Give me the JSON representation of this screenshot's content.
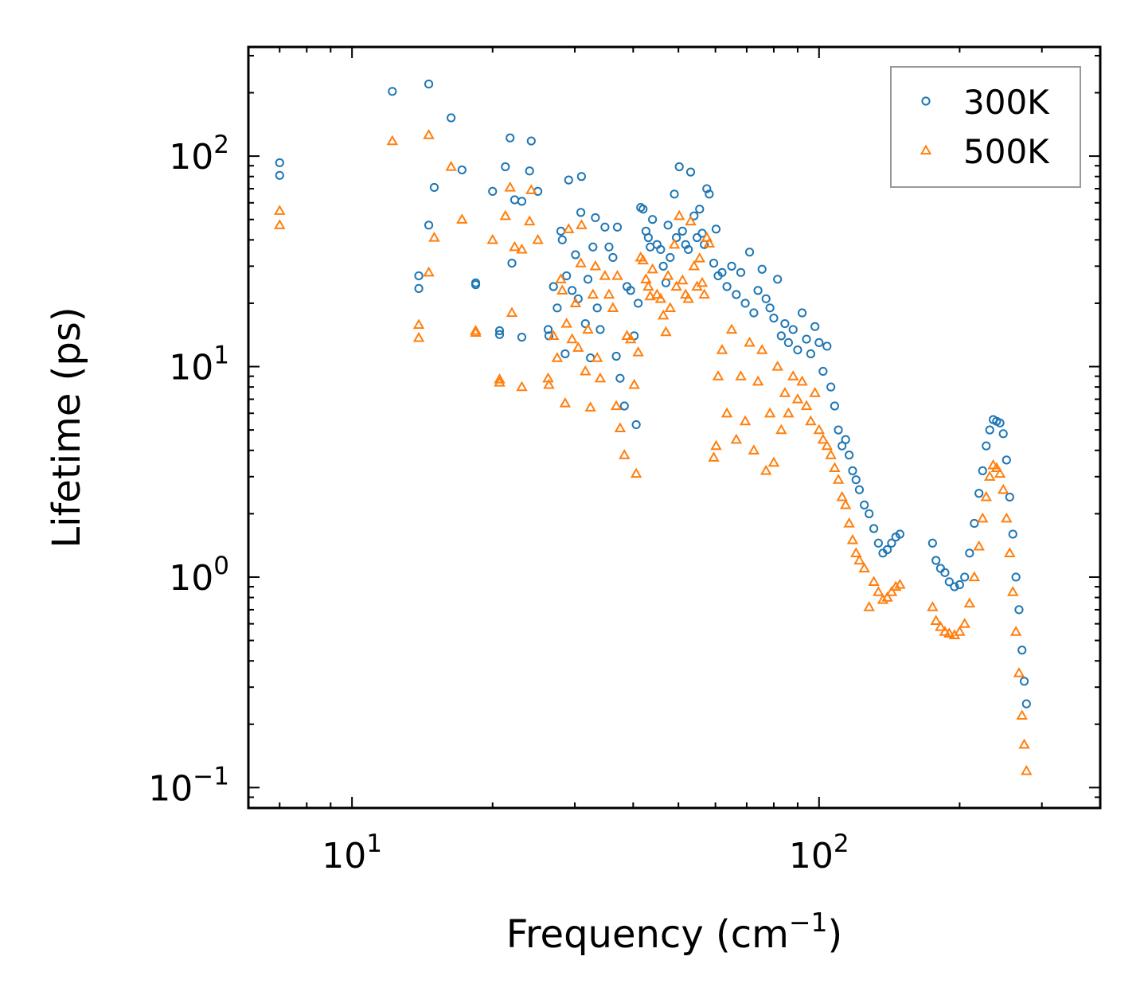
{
  "chart_data": {
    "type": "scatter",
    "title": "",
    "xlabel": "Frequency (cm",
    "xlabel_sup": "−1",
    "xlabel_end": ")",
    "ylabel": "Lifetime (ps)",
    "xscale": "log",
    "yscale": "log",
    "xlim": [
      6.0,
      400.0
    ],
    "ylim": [
      0.08,
      330.0
    ],
    "xticks": [
      {
        "value": 10,
        "base": "10",
        "exp": "1"
      },
      {
        "value": 100,
        "base": "10",
        "exp": "2"
      }
    ],
    "yticks": [
      {
        "value": 0.1,
        "base": "10",
        "exp": "−1"
      },
      {
        "value": 1,
        "base": "10",
        "exp": "0"
      },
      {
        "value": 10,
        "base": "10",
        "exp": "1"
      },
      {
        "value": 100,
        "base": "10",
        "exp": "2"
      }
    ],
    "legend_position": "top-right",
    "series": [
      {
        "name": "300K",
        "marker": "circle",
        "color": "#1f77b4",
        "points": [
          [
            7.0,
            93
          ],
          [
            7.0,
            81
          ],
          [
            12.2,
            203
          ],
          [
            14.6,
            220
          ],
          [
            16.3,
            152
          ],
          [
            13.9,
            27
          ],
          [
            13.9,
            23.5
          ],
          [
            14.6,
            47
          ],
          [
            15.0,
            71
          ],
          [
            17.2,
            86
          ],
          [
            18.4,
            25
          ],
          [
            18.4,
            24.5
          ],
          [
            20.0,
            68
          ],
          [
            20.7,
            14.8
          ],
          [
            20.7,
            14.2
          ],
          [
            21.3,
            89
          ],
          [
            21.8,
            122
          ],
          [
            22.0,
            31
          ],
          [
            22.3,
            62
          ],
          [
            23.1,
            61
          ],
          [
            23.1,
            13.8
          ],
          [
            24.0,
            85
          ],
          [
            24.2,
            118
          ],
          [
            25.0,
            68
          ],
          [
            26.3,
            15
          ],
          [
            26.4,
            14
          ],
          [
            27.0,
            24
          ],
          [
            27.5,
            19
          ],
          [
            28.0,
            44
          ],
          [
            28.2,
            40
          ],
          [
            28.6,
            11.5
          ],
          [
            28.8,
            27
          ],
          [
            29.1,
            77
          ],
          [
            29.6,
            23
          ],
          [
            30.1,
            34
          ],
          [
            30.5,
            21
          ],
          [
            30.9,
            54
          ],
          [
            31.0,
            80
          ],
          [
            31.6,
            16
          ],
          [
            32.0,
            26
          ],
          [
            32.4,
            11
          ],
          [
            32.8,
            37
          ],
          [
            33.2,
            51
          ],
          [
            33.5,
            19
          ],
          [
            34.0,
            15
          ],
          [
            34.8,
            46
          ],
          [
            35.5,
            37
          ],
          [
            36.2,
            33
          ],
          [
            36.8,
            11.2
          ],
          [
            37.0,
            46
          ],
          [
            37.5,
            8.8
          ],
          [
            38.3,
            6.5
          ],
          [
            38.8,
            24
          ],
          [
            39.5,
            23
          ],
          [
            40.2,
            14
          ],
          [
            40.6,
            5.3
          ],
          [
            41.0,
            20
          ],
          [
            41.5,
            57
          ],
          [
            42.0,
            56
          ],
          [
            42.6,
            44
          ],
          [
            43.1,
            41
          ],
          [
            43.5,
            37
          ],
          [
            44.0,
            50
          ],
          [
            45.0,
            38
          ],
          [
            45.8,
            36
          ],
          [
            46.4,
            30
          ],
          [
            47.0,
            25
          ],
          [
            47.5,
            47
          ],
          [
            48.0,
            33
          ],
          [
            49.0,
            66
          ],
          [
            49.5,
            41
          ],
          [
            50.2,
            89
          ],
          [
            51.0,
            44
          ],
          [
            51.8,
            38
          ],
          [
            52.5,
            36
          ],
          [
            53.1,
            84
          ],
          [
            54.0,
            52
          ],
          [
            54.8,
            41
          ],
          [
            55.5,
            56
          ],
          [
            56.2,
            43
          ],
          [
            56.8,
            38
          ],
          [
            57.5,
            70
          ],
          [
            58.2,
            66
          ],
          [
            59.5,
            31
          ],
          [
            60.2,
            45
          ],
          [
            60.8,
            27
          ],
          [
            62.0,
            28
          ],
          [
            63.5,
            24
          ],
          [
            65.0,
            30
          ],
          [
            66.5,
            22
          ],
          [
            68.0,
            28
          ],
          [
            69.5,
            20
          ],
          [
            71.0,
            35
          ],
          [
            72.5,
            18
          ],
          [
            74.0,
            23
          ],
          [
            75.5,
            29
          ],
          [
            77.0,
            21
          ],
          [
            78.5,
            19
          ],
          [
            80.0,
            17
          ],
          [
            81.5,
            26
          ],
          [
            83.0,
            14
          ],
          [
            84.5,
            16
          ],
          [
            86.0,
            13
          ],
          [
            88.0,
            15
          ],
          [
            90.0,
            12
          ],
          [
            92.0,
            18
          ],
          [
            94.0,
            13.5
          ],
          [
            96.0,
            11.5
          ],
          [
            98.0,
            15.5
          ],
          [
            100.0,
            13
          ],
          [
            102.0,
            9.5
          ],
          [
            104.0,
            12.5
          ],
          [
            106.0,
            8
          ],
          [
            108.0,
            6.5
          ],
          [
            110.0,
            5
          ],
          [
            112.0,
            4.2
          ],
          [
            114.0,
            4.5
          ],
          [
            116.0,
            3.8
          ],
          [
            118.0,
            3.2
          ],
          [
            120.0,
            2.9
          ],
          [
            122.0,
            2.6
          ],
          [
            125.0,
            2.2
          ],
          [
            128.0,
            2.0
          ],
          [
            131.0,
            1.7
          ],
          [
            134.0,
            1.45
          ],
          [
            137.0,
            1.3
          ],
          [
            140.0,
            1.35
          ],
          [
            143.0,
            1.45
          ],
          [
            146.0,
            1.55
          ],
          [
            149.0,
            1.6
          ],
          [
            175.0,
            1.45
          ],
          [
            178.0,
            1.2
          ],
          [
            182.0,
            1.1
          ],
          [
            186.0,
            1.05
          ],
          [
            190.0,
            0.95
          ],
          [
            195.0,
            0.9
          ],
          [
            200.0,
            0.92
          ],
          [
            205.0,
            1.0
          ],
          [
            210.0,
            1.3
          ],
          [
            215.0,
            1.8
          ],
          [
            220.0,
            2.5
          ],
          [
            224.0,
            3.2
          ],
          [
            228.0,
            4.2
          ],
          [
            232.0,
            5.0
          ],
          [
            236.0,
            5.6
          ],
          [
            240.0,
            5.5
          ],
          [
            244.0,
            5.4
          ],
          [
            248.0,
            4.8
          ],
          [
            252.0,
            3.6
          ],
          [
            256.0,
            2.4
          ],
          [
            260.0,
            1.6
          ],
          [
            264.0,
            1.0
          ],
          [
            268.0,
            0.7
          ],
          [
            272.0,
            0.45
          ],
          [
            275.0,
            0.32
          ],
          [
            278.0,
            0.25
          ]
        ]
      },
      {
        "name": "500K",
        "marker": "triangle",
        "color": "#ff7f0e",
        "points": [
          [
            7.0,
            55
          ],
          [
            7.0,
            47
          ],
          [
            12.2,
            118
          ],
          [
            14.6,
            126
          ],
          [
            16.3,
            89
          ],
          [
            13.9,
            15.8
          ],
          [
            13.9,
            13.7
          ],
          [
            14.6,
            28
          ],
          [
            15.0,
            41
          ],
          [
            17.2,
            50
          ],
          [
            18.4,
            14.5
          ],
          [
            18.4,
            14.8
          ],
          [
            20.0,
            40
          ],
          [
            20.7,
            8.7
          ],
          [
            20.7,
            8.4
          ],
          [
            21.3,
            52
          ],
          [
            21.8,
            71
          ],
          [
            22.0,
            18
          ],
          [
            22.3,
            37
          ],
          [
            23.1,
            36
          ],
          [
            23.1,
            8.0
          ],
          [
            24.0,
            49
          ],
          [
            24.2,
            69
          ],
          [
            25.0,
            40
          ],
          [
            26.3,
            8.8
          ],
          [
            26.4,
            8.2
          ],
          [
            27.0,
            14
          ],
          [
            27.5,
            11
          ],
          [
            28.0,
            26
          ],
          [
            28.2,
            23
          ],
          [
            28.6,
            6.7
          ],
          [
            28.8,
            16
          ],
          [
            29.1,
            45
          ],
          [
            29.6,
            13.5
          ],
          [
            30.1,
            20
          ],
          [
            30.5,
            12.3
          ],
          [
            30.9,
            31
          ],
          [
            31.0,
            47
          ],
          [
            31.6,
            9.5
          ],
          [
            32.0,
            15
          ],
          [
            32.4,
            6.4
          ],
          [
            32.8,
            22
          ],
          [
            33.2,
            30
          ],
          [
            33.5,
            11
          ],
          [
            34.0,
            8.8
          ],
          [
            34.8,
            27
          ],
          [
            35.5,
            22
          ],
          [
            36.2,
            19
          ],
          [
            36.8,
            6.5
          ],
          [
            37.0,
            27
          ],
          [
            37.5,
            5.1
          ],
          [
            38.3,
            3.8
          ],
          [
            38.8,
            14
          ],
          [
            39.5,
            13.5
          ],
          [
            40.2,
            8.2
          ],
          [
            40.6,
            3.1
          ],
          [
            41.0,
            11.7
          ],
          [
            41.5,
            33
          ],
          [
            42.0,
            32
          ],
          [
            42.6,
            26
          ],
          [
            43.1,
            24
          ],
          [
            43.5,
            21.6
          ],
          [
            44.0,
            29
          ],
          [
            45.0,
            22
          ],
          [
            45.8,
            21
          ],
          [
            46.4,
            17.5
          ],
          [
            47.0,
            14.6
          ],
          [
            47.5,
            27
          ],
          [
            48.0,
            19
          ],
          [
            49.0,
            38
          ],
          [
            49.5,
            24
          ],
          [
            50.2,
            52
          ],
          [
            51.0,
            25.7
          ],
          [
            51.8,
            22
          ],
          [
            52.5,
            21
          ],
          [
            53.1,
            49
          ],
          [
            54.0,
            30
          ],
          [
            54.8,
            24
          ],
          [
            55.5,
            32.7
          ],
          [
            56.2,
            25
          ],
          [
            56.8,
            22
          ],
          [
            57.5,
            41
          ],
          [
            58.2,
            38.5
          ],
          [
            59.5,
            3.7
          ],
          [
            60.2,
            4.2
          ],
          [
            60.8,
            9
          ],
          [
            62.0,
            12
          ],
          [
            63.5,
            6
          ],
          [
            65.0,
            15
          ],
          [
            66.5,
            4.5
          ],
          [
            68.0,
            9
          ],
          [
            69.5,
            5.5
          ],
          [
            71.0,
            13
          ],
          [
            72.5,
            4
          ],
          [
            74.0,
            8.5
          ],
          [
            75.5,
            12
          ],
          [
            77.0,
            3.2
          ],
          [
            78.5,
            6
          ],
          [
            80.0,
            3.5
          ],
          [
            81.5,
            10
          ],
          [
            83.0,
            5
          ],
          [
            84.5,
            7.5
          ],
          [
            86.0,
            6
          ],
          [
            88.0,
            9
          ],
          [
            90.0,
            7
          ],
          [
            92.0,
            8.5
          ],
          [
            94.0,
            6.5
          ],
          [
            96.0,
            5.5
          ],
          [
            98.0,
            7.5
          ],
          [
            100.0,
            5
          ],
          [
            102.0,
            4.5
          ],
          [
            104.0,
            4.2
          ],
          [
            106.0,
            3.8
          ],
          [
            108.0,
            3.3
          ],
          [
            110.0,
            2.9
          ],
          [
            112.0,
            2.4
          ],
          [
            114.0,
            2.2
          ],
          [
            116.0,
            1.8
          ],
          [
            118.0,
            1.5
          ],
          [
            120.0,
            1.3
          ],
          [
            122.0,
            1.2
          ],
          [
            125.0,
            1.1
          ],
          [
            128.0,
            0.72
          ],
          [
            131.0,
            0.95
          ],
          [
            134.0,
            0.85
          ],
          [
            137.0,
            0.78
          ],
          [
            140.0,
            0.8
          ],
          [
            143.0,
            0.85
          ],
          [
            146.0,
            0.9
          ],
          [
            149.0,
            0.92
          ],
          [
            175.0,
            0.72
          ],
          [
            178.0,
            0.62
          ],
          [
            182.0,
            0.58
          ],
          [
            186.0,
            0.55
          ],
          [
            190.0,
            0.54
          ],
          [
            195.0,
            0.53
          ],
          [
            200.0,
            0.55
          ],
          [
            205.0,
            0.6
          ],
          [
            210.0,
            0.75
          ],
          [
            215.0,
            1.0
          ],
          [
            220.0,
            1.4
          ],
          [
            224.0,
            1.9
          ],
          [
            228.0,
            2.4
          ],
          [
            232.0,
            3.0
          ],
          [
            236.0,
            3.4
          ],
          [
            240.0,
            3.3
          ],
          [
            244.0,
            3.1
          ],
          [
            248.0,
            2.6
          ],
          [
            252.0,
            1.9
          ],
          [
            256.0,
            1.3
          ],
          [
            260.0,
            0.85
          ],
          [
            264.0,
            0.55
          ],
          [
            268.0,
            0.35
          ],
          [
            272.0,
            0.22
          ],
          [
            275.0,
            0.16
          ],
          [
            278.0,
            0.12
          ]
        ]
      }
    ]
  }
}
